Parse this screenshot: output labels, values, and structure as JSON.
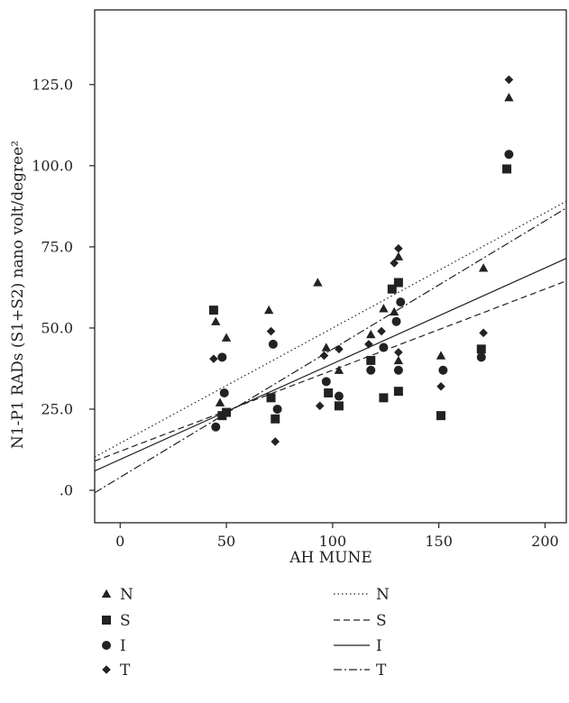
{
  "chart_data": {
    "type": "scatter",
    "title": "",
    "xlabel": "AH MUNE",
    "ylabel": "N1-P1 RADs (S1+S2) nano volt/degree²",
    "xlim": [
      -12,
      210
    ],
    "ylim": [
      -10,
      148
    ],
    "xticks": [
      0,
      50,
      100,
      150,
      200
    ],
    "xtick_labels": [
      "0",
      "50",
      "100",
      "150",
      "200"
    ],
    "yticks": [
      0,
      25,
      50,
      75,
      100,
      125
    ],
    "ytick_labels": [
      ".0",
      "25.0",
      "50.0",
      "75.0",
      "100.0",
      "125.0"
    ],
    "grid": false,
    "legend_position": "bottom",
    "series": [
      {
        "name": "N",
        "marker": "triangle",
        "points": [
          [
            45,
            52
          ],
          [
            47,
            27
          ],
          [
            50,
            47
          ],
          [
            70,
            55.5
          ],
          [
            93,
            64
          ],
          [
            97,
            44
          ],
          [
            103,
            37
          ],
          [
            118,
            48
          ],
          [
            124,
            56
          ],
          [
            129,
            55
          ],
          [
            131,
            72
          ],
          [
            131,
            40
          ],
          [
            151,
            41.5
          ],
          [
            171,
            68.5
          ],
          [
            183,
            121
          ]
        ]
      },
      {
        "name": "S",
        "marker": "square",
        "points": [
          [
            44,
            55.5
          ],
          [
            48,
            23
          ],
          [
            50,
            24
          ],
          [
            71,
            28.5
          ],
          [
            73,
            22
          ],
          [
            98,
            30
          ],
          [
            103,
            26
          ],
          [
            118,
            40
          ],
          [
            124,
            28.5
          ],
          [
            128,
            62
          ],
          [
            131,
            64
          ],
          [
            131,
            30.5
          ],
          [
            151,
            23
          ],
          [
            170,
            43.5
          ],
          [
            182,
            99
          ]
        ]
      },
      {
        "name": "I",
        "marker": "circle",
        "points": [
          [
            45,
            19.5
          ],
          [
            48,
            41
          ],
          [
            49,
            30
          ],
          [
            72,
            45
          ],
          [
            74,
            25
          ],
          [
            97,
            33.5
          ],
          [
            103,
            29
          ],
          [
            118,
            37
          ],
          [
            124,
            44
          ],
          [
            130,
            52
          ],
          [
            131,
            37
          ],
          [
            132,
            58
          ],
          [
            152,
            37
          ],
          [
            170,
            41
          ],
          [
            183,
            103.5
          ]
        ]
      },
      {
        "name": "T",
        "marker": "diamond",
        "points": [
          [
            44,
            40.5
          ],
          [
            71,
            49
          ],
          [
            73,
            15
          ],
          [
            94,
            26
          ],
          [
            96,
            41.5
          ],
          [
            103,
            43.5
          ],
          [
            117,
            45
          ],
          [
            123,
            49
          ],
          [
            129,
            70
          ],
          [
            131,
            42.5
          ],
          [
            131,
            74.5
          ],
          [
            151,
            32
          ],
          [
            171,
            48.5
          ],
          [
            183,
            126.5
          ]
        ]
      }
    ],
    "regression_lines": [
      {
        "name": "N",
        "dash": "dotted",
        "intercept": 14.5,
        "slope": 0.355
      },
      {
        "name": "S",
        "dash": "dashed",
        "intercept": 12.0,
        "slope": 0.25
      },
      {
        "name": "I",
        "dash": "solid",
        "intercept": 9.5,
        "slope": 0.295
      },
      {
        "name": "T",
        "dash": "dashdot",
        "intercept": 4.0,
        "slope": 0.395
      }
    ]
  }
}
